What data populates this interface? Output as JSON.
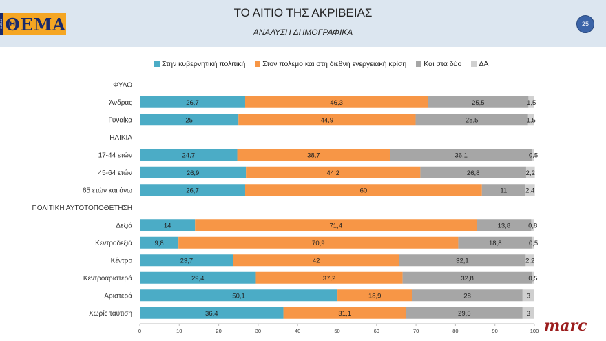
{
  "header": {
    "logo_text": "ΘΕΜΑ",
    "logo_side": "ΠΡΩΤΟ",
    "title": "ΤΟ ΑΙΤΙΟ ΤΗΣ ΑΚΡΙΒΕΙΑΣ",
    "subtitle": "ΑΝΑΛΥΣΗ ΔΗΜΟΓΡΑΦΙΚΑ",
    "page_number": "25"
  },
  "brand": "marc",
  "chart_data": {
    "type": "bar",
    "orientation": "horizontal",
    "stacked": true,
    "xlim": [
      0,
      100
    ],
    "xticks": [
      0,
      10,
      20,
      30,
      40,
      50,
      60,
      70,
      80,
      90,
      100
    ],
    "legend_position": "top",
    "series": [
      {
        "name": "Στην κυβερνητική πολιτική",
        "color": "#4bacc6"
      },
      {
        "name": "Στον πόλεμο και στη διεθνή ενεργειακή κρίση",
        "color": "#f79646"
      },
      {
        "name": "Και στα δύο",
        "color": "#a6a6a6"
      },
      {
        "name": "ΔΑ",
        "color": "#d0d0d0"
      }
    ],
    "rows": [
      {
        "label": "ΦΥΛΟ",
        "section": true
      },
      {
        "label": "Άνδρας",
        "values": [
          26.7,
          46.3,
          25.5,
          1.5
        ],
        "labels": [
          "26,7",
          "46,3",
          "25,5",
          "1,5"
        ]
      },
      {
        "label": "Γυναίκα",
        "values": [
          25,
          44.9,
          28.5,
          1.5
        ],
        "labels": [
          "25",
          "44,9",
          "28,5",
          "1,5"
        ]
      },
      {
        "label": "ΗΛΙΚΙΑ",
        "section": true
      },
      {
        "label": "17-44 ετών",
        "values": [
          24.7,
          38.7,
          36.1,
          0.5
        ],
        "labels": [
          "24,7",
          "38,7",
          "36,1",
          "0,5"
        ]
      },
      {
        "label": "45-64 ετών",
        "values": [
          26.9,
          44.2,
          26.8,
          2.2
        ],
        "labels": [
          "26,9",
          "44,2",
          "26,8",
          "2,2"
        ]
      },
      {
        "label": "65 ετών και άνω",
        "values": [
          26.7,
          60,
          11,
          2.4
        ],
        "labels": [
          "26,7",
          "60",
          "11",
          "2,4"
        ]
      },
      {
        "label": "ΠΟΛΙΤΙΚΗ ΑΥΤΟΤΟΠΟΘΕΤΗΣΗ",
        "section": true
      },
      {
        "label": "Δεξιά",
        "values": [
          14,
          71.4,
          13.8,
          0.8
        ],
        "labels": [
          "14",
          "71,4",
          "13,8",
          "0,8"
        ]
      },
      {
        "label": "Κεντροδεξιά",
        "values": [
          9.8,
          70.9,
          18.8,
          0.5
        ],
        "labels": [
          "9,8",
          "70,9",
          "18,8",
          "0,5"
        ]
      },
      {
        "label": "Κέντρο",
        "values": [
          23.7,
          42,
          32.1,
          2.2
        ],
        "labels": [
          "23,7",
          "42",
          "32,1",
          "2,2"
        ]
      },
      {
        "label": "Κεντροαριστερά",
        "values": [
          29.4,
          37.2,
          32.8,
          0.5
        ],
        "labels": [
          "29,4",
          "37,2",
          "32,8",
          "0,5"
        ]
      },
      {
        "label": "Αριστερά",
        "values": [
          50.1,
          18.9,
          28,
          3
        ],
        "labels": [
          "50,1",
          "18,9",
          "28",
          "3"
        ]
      },
      {
        "label": "Χωρίς ταύτιση",
        "values": [
          36.4,
          31.1,
          29.5,
          3
        ],
        "labels": [
          "36,4",
          "31,1",
          "29,5",
          "3"
        ]
      }
    ]
  }
}
